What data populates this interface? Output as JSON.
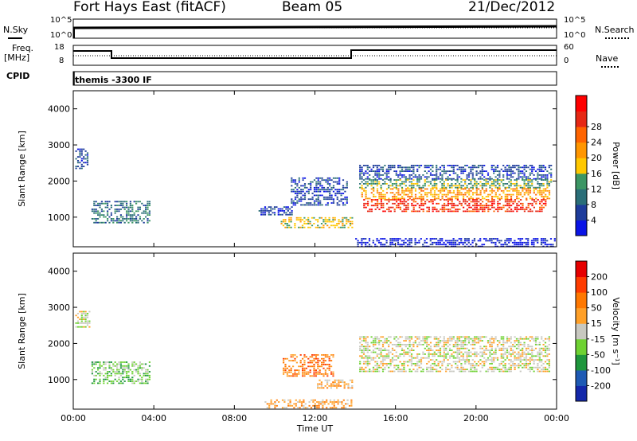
{
  "header": {
    "title": "Fort Hays East (fitACF)",
    "beam": "Beam 05",
    "date": "21/Dec/2012"
  },
  "top_panels": {
    "nsky_label": "N.Sky",
    "nsearch_label": "N.Search",
    "nsky_ticks": [
      "10^5",
      "10^0"
    ],
    "nsearch_ticks": [
      "10^5",
      "10^0"
    ],
    "freq_label_1": "Freq.",
    "freq_label_2": "[MHz]",
    "freq_ticks": [
      "18",
      "8"
    ],
    "nave_label": "Nave",
    "nave_ticks": [
      "60",
      "0"
    ],
    "cpid_label": "CPID",
    "cpid_value": "themis -3300 IF"
  },
  "chart_data": [
    {
      "type": "heatmap",
      "name": "power",
      "ylabel": "Slant Range [km]",
      "ylim": [
        180,
        4500
      ],
      "yticks": [
        "1000",
        "2000",
        "3000",
        "4000"
      ],
      "xlim_hours": [
        0,
        24
      ],
      "colorbar": {
        "label": "Power [dB]",
        "ticks": [
          "4",
          "8",
          "12",
          "16",
          "20",
          "24",
          "28"
        ],
        "colors": [
          "#0a14e6",
          "#1e3c9b",
          "#2a6e78",
          "#3c9664",
          "#ffc800",
          "#ff9600",
          "#ff6400",
          "#e62814",
          "#ff0000"
        ]
      },
      "regions": [
        {
          "t": [
            0.1,
            0.7
          ],
          "r": [
            2350,
            2900
          ],
          "level": 1
        },
        {
          "t": [
            0.9,
            3.8
          ],
          "r": [
            850,
            1450
          ],
          "level": 2
        },
        {
          "t": [
            9.2,
            10.9
          ],
          "r": [
            1050,
            1300
          ],
          "level": 1
        },
        {
          "t": [
            10.3,
            13.9
          ],
          "r": [
            700,
            1000
          ],
          "level": 4
        },
        {
          "t": [
            10.8,
            13.6
          ],
          "r": [
            1350,
            2100
          ],
          "level": 1
        },
        {
          "t": [
            14.2,
            23.7
          ],
          "r": [
            2050,
            2450
          ],
          "level": 1
        },
        {
          "t": [
            14.2,
            23.7
          ],
          "r": [
            1800,
            2050
          ],
          "level": 3
        },
        {
          "t": [
            14.3,
            23.6
          ],
          "r": [
            1500,
            1800
          ],
          "level": 5
        },
        {
          "t": [
            14.4,
            23.5
          ],
          "r": [
            1150,
            1500
          ],
          "level": 7
        },
        {
          "t": [
            14.0,
            23.9
          ],
          "r": [
            190,
            420
          ],
          "level": 0
        }
      ]
    },
    {
      "type": "heatmap",
      "name": "velocity",
      "ylabel": "Slant Range [km]",
      "ylim": [
        180,
        4500
      ],
      "yticks": [
        "1000",
        "2000",
        "3000",
        "4000"
      ],
      "xlabel": "Time UT",
      "xticks": [
        "00:00",
        "04:00",
        "08:00",
        "12:00",
        "16:00",
        "20:00",
        "00:00"
      ],
      "xlim_hours": [
        0,
        24
      ],
      "colorbar": {
        "label": "Velocity [m s⁻¹]",
        "ticks": [
          "200",
          "100",
          "50",
          "15",
          "-15",
          "-50",
          "-100",
          "-200"
        ],
        "colors": [
          "#1428aa",
          "#1e5ab4",
          "#1e963c",
          "#6ed232",
          "#c8c8c0",
          "#ffa028",
          "#ff7800",
          "#ff3c00",
          "#e60000"
        ]
      },
      "regions": [
        {
          "t": [
            0.1,
            0.8
          ],
          "r": [
            2450,
            2900
          ],
          "level": 4
        },
        {
          "t": [
            0.9,
            3.8
          ],
          "r": [
            900,
            1500
          ],
          "level": 3
        },
        {
          "t": [
            9.5,
            13.8
          ],
          "r": [
            200,
            450
          ],
          "level": 5
        },
        {
          "t": [
            10.4,
            12.9
          ],
          "r": [
            1100,
            1700
          ],
          "level": 6
        },
        {
          "t": [
            12.1,
            13.9
          ],
          "r": [
            750,
            1000
          ],
          "level": 5
        },
        {
          "t": [
            14.2,
            23.6
          ],
          "r": [
            1200,
            2200
          ],
          "level": 4
        }
      ]
    }
  ]
}
